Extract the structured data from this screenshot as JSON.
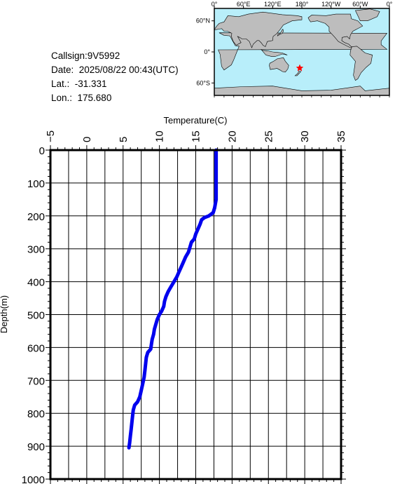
{
  "meta": {
    "callsign": "Callsign:9V5992",
    "date": "Date:  2025/08/22 00:43(UTC)",
    "lat": "Lat.:  -31.331",
    "lon": "Lon.:  175.680"
  },
  "map": {
    "lon_labels": [
      "0°",
      "60°E",
      "120°E",
      "180°",
      "120°W",
      "60°W",
      "0°"
    ],
    "lat_labels": [
      "60°N",
      "0°",
      "60°S"
    ],
    "station": {
      "lat": -31.331,
      "lon": 175.68
    },
    "colors": {
      "ocean": "#b8eefa",
      "land": "#bdbdbd",
      "marker": "#ff0000"
    }
  },
  "chart_data": {
    "type": "line",
    "xlabel": "Temperature(C)",
    "ylabel": "Depth(m)",
    "xlim": [
      -5,
      35
    ],
    "ylim": [
      0,
      1000
    ],
    "y_inverted": true,
    "xticks": [
      -5,
      0,
      5,
      10,
      15,
      20,
      25,
      30,
      35
    ],
    "yticks": [
      0,
      100,
      200,
      300,
      400,
      500,
      600,
      700,
      800,
      900,
      1000
    ],
    "grid": true,
    "color": "#0000ee",
    "series": [
      {
        "points": [
          [
            17.8,
            0
          ],
          [
            17.8,
            50
          ],
          [
            17.8,
            100
          ],
          [
            17.8,
            150
          ],
          [
            17.6,
            175
          ],
          [
            17.4,
            190
          ],
          [
            16.8,
            200
          ],
          [
            16.2,
            205
          ],
          [
            15.8,
            212
          ],
          [
            15.6,
            225
          ],
          [
            15.3,
            240
          ],
          [
            15.0,
            255
          ],
          [
            14.8,
            270
          ],
          [
            14.4,
            280
          ],
          [
            14.2,
            295
          ],
          [
            14.0,
            310
          ],
          [
            13.6,
            325
          ],
          [
            13.3,
            340
          ],
          [
            13.0,
            355
          ],
          [
            12.7,
            370
          ],
          [
            12.4,
            385
          ],
          [
            12.0,
            400
          ],
          [
            11.6,
            415
          ],
          [
            11.2,
            430
          ],
          [
            10.9,
            445
          ],
          [
            10.7,
            460
          ],
          [
            10.6,
            475
          ],
          [
            10.3,
            490
          ],
          [
            10.0,
            500
          ],
          [
            9.7,
            515
          ],
          [
            9.5,
            530
          ],
          [
            9.3,
            545
          ],
          [
            9.2,
            560
          ],
          [
            9.0,
            575
          ],
          [
            8.9,
            590
          ],
          [
            8.8,
            605
          ],
          [
            8.4,
            615
          ],
          [
            8.2,
            630
          ],
          [
            8.1,
            650
          ],
          [
            8.0,
            670
          ],
          [
            7.9,
            690
          ],
          [
            7.7,
            710
          ],
          [
            7.5,
            730
          ],
          [
            7.3,
            750
          ],
          [
            7.0,
            765
          ],
          [
            6.6,
            775
          ],
          [
            6.4,
            790
          ],
          [
            6.3,
            810
          ],
          [
            6.2,
            830
          ],
          [
            6.1,
            850
          ],
          [
            6.0,
            870
          ],
          [
            5.9,
            890
          ],
          [
            5.8,
            905
          ]
        ]
      }
    ]
  }
}
